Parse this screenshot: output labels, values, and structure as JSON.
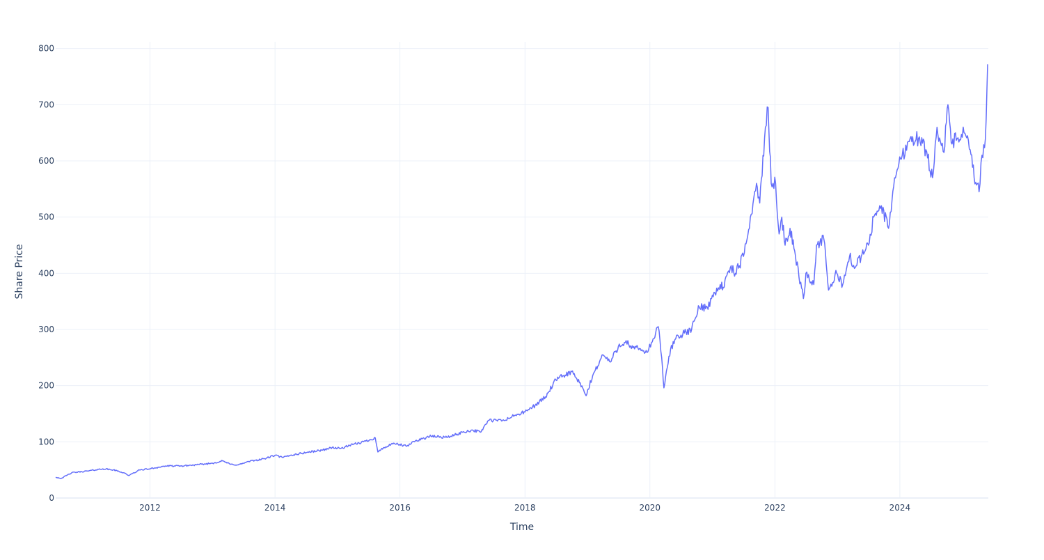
{
  "chart_data": {
    "type": "line",
    "title": "",
    "xlabel": "Time",
    "ylabel": "Share Price",
    "x_type": "date",
    "xlim": [
      "2010-06-29",
      "2025-06-01"
    ],
    "ylim": [
      0,
      812
    ],
    "x_ticks": [
      "2012-01-01",
      "2014-01-01",
      "2016-01-01",
      "2018-01-01",
      "2020-01-01",
      "2022-01-01",
      "2024-01-01"
    ],
    "x_tick_labels": [
      "2012",
      "2014",
      "2016",
      "2018",
      "2020",
      "2022",
      "2024"
    ],
    "y_ticks": [
      0,
      100,
      200,
      300,
      400,
      500,
      600,
      700,
      800
    ],
    "y_tick_labels": [
      "0",
      "100",
      "200",
      "300",
      "400",
      "500",
      "600",
      "700",
      "800"
    ],
    "grid": true,
    "legend": "none",
    "colors": {
      "line": "#636efa",
      "grid": "#ebf0f8",
      "text": "#2a3f5f"
    },
    "series": [
      {
        "x": [
          "2010-06-29",
          "2010-08-01",
          "2010-10-01",
          "2011-01-01",
          "2011-04-01",
          "2011-06-01",
          "2011-08-01",
          "2011-09-01",
          "2011-11-01",
          "2012-01-01",
          "2012-04-01",
          "2012-07-01",
          "2012-10-01",
          "2013-01-01",
          "2013-03-01",
          "2013-04-15",
          "2013-06-01",
          "2013-08-01",
          "2013-11-01",
          "2014-01-01",
          "2014-02-15",
          "2014-04-01",
          "2014-07-01",
          "2014-10-01",
          "2014-12-01",
          "2015-01-15",
          "2015-04-01",
          "2015-06-01",
          "2015-08-10",
          "2015-08-25",
          "2015-10-01",
          "2015-12-01",
          "2016-02-10",
          "2016-04-01",
          "2016-07-01",
          "2016-10-01",
          "2016-11-15",
          "2017-01-01",
          "2017-03-01",
          "2017-04-15",
          "2017-06-01",
          "2017-09-01",
          "2017-11-01",
          "2018-01-01",
          "2018-03-01",
          "2018-05-01",
          "2018-07-01",
          "2018-08-15",
          "2018-10-01",
          "2018-11-15",
          "2018-12-24",
          "2019-02-01",
          "2019-04-01",
          "2019-05-15",
          "2019-07-01",
          "2019-08-15",
          "2019-09-15",
          "2019-11-01",
          "2019-12-15",
          "2020-01-15",
          "2020-02-19",
          "2020-03-10",
          "2020-03-23",
          "2020-05-01",
          "2020-06-10",
          "2020-07-01",
          "2020-09-01",
          "2020-10-15",
          "2020-12-01",
          "2021-01-15",
          "2021-02-15",
          "2021-03-05",
          "2021-04-15",
          "2021-05-15",
          "2021-07-01",
          "2021-08-15",
          "2021-09-15",
          "2021-10-04",
          "2021-11-01",
          "2021-11-22",
          "2021-12-10",
          "2022-01-05",
          "2022-01-25",
          "2022-02-10",
          "2022-03-01",
          "2022-03-30",
          "2022-05-01",
          "2022-06-16",
          "2022-07-01",
          "2022-08-16",
          "2022-09-01",
          "2022-10-14",
          "2022-11-10",
          "2022-12-28",
          "2023-02-01",
          "2023-03-13",
          "2023-04-15",
          "2023-05-20",
          "2023-07-01",
          "2023-08-01",
          "2023-09-15",
          "2023-10-27",
          "2023-12-01",
          "2024-01-15",
          "2024-03-01",
          "2024-04-19",
          "2024-06-01",
          "2024-07-10",
          "2024-08-05",
          "2024-09-15",
          "2024-10-08",
          "2024-11-01",
          "2024-12-01",
          "2025-01-10",
          "2025-02-15",
          "2025-03-10",
          "2025-04-08",
          "2025-04-25",
          "2025-05-15",
          "2025-05-28"
        ],
        "values": [
          37,
          35,
          45,
          48,
          52,
          50,
          45,
          40,
          50,
          52,
          57,
          57,
          59,
          62,
          66,
          60,
          59,
          65,
          70,
          76,
          72,
          76,
          81,
          85,
          90,
          88,
          95,
          100,
          107,
          82,
          90,
          97,
          92,
          102,
          110,
          108,
          112,
          117,
          121,
          117,
          138,
          138,
          147,
          153,
          165,
          180,
          210,
          218,
          225,
          205,
          182,
          218,
          255,
          242,
          270,
          280,
          266,
          266,
          259,
          278,
          305,
          250,
          196,
          265,
          290,
          290,
          300,
          340,
          340,
          365,
          380,
          375,
          410,
          400,
          430,
          505,
          560,
          525,
          640,
          695,
          560,
          560,
          470,
          500,
          450,
          480,
          430,
          355,
          400,
          380,
          450,
          460,
          370,
          400,
          380,
          430,
          410,
          430,
          450,
          500,
          520,
          480,
          570,
          610,
          640,
          640,
          620,
          570,
          660,
          615,
          700,
          630,
          640,
          650,
          620,
          570,
          545,
          610,
          640,
          772
        ]
      }
    ]
  }
}
